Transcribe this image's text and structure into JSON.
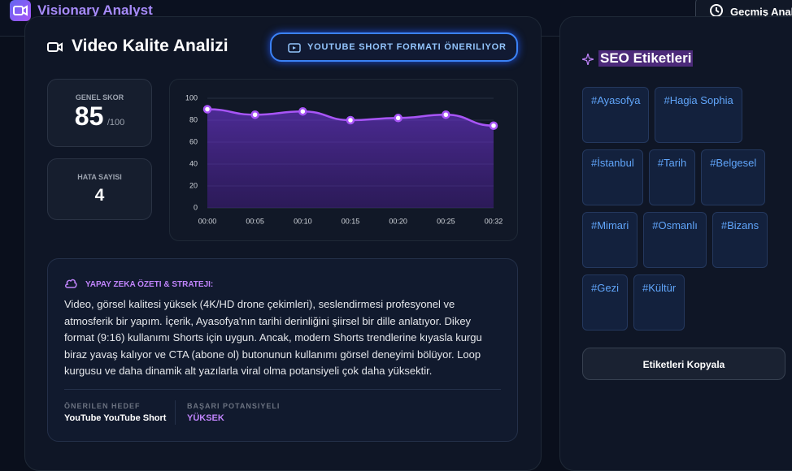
{
  "header": {
    "app_name": "Visionary Analyst",
    "history_button": "Geçmiş Anali"
  },
  "main": {
    "title": "Video Kalite Analizi",
    "format_badge": "YOUTUBE SHORT FORMATI ÖNERILIYOR",
    "score": {
      "label": "GENEL SKOR",
      "value": 85,
      "max_label": "/100"
    },
    "errors": {
      "label": "HATA SAYISI",
      "value": 4
    },
    "summary": {
      "heading": "YAPAY ZEKA ÖZETI & STRATEJI:",
      "text": "Video, görsel kalitesi yüksek (4K/HD drone çekimleri), seslendirmesi profesyonel ve atmosferik bir yapım. İçerik, Ayasofya'nın tarihi derinliğini şiirsel bir dille anlatıyor. Dikey format (9:16) kullanımı Shorts için uygun. Ancak, modern Shorts trendlerine kıyasla kurgu biraz yavaş kalıyor ve CTA (abone ol) butonunun kullanımı görsel deneyimi bölüyor. Loop kurgusu ve daha dinamik alt yazılarla viral olma potansiyeli çok daha yüksektir.",
      "target": {
        "label": "ÖNERILEN HEDEF",
        "value": "YouTube YouTube Short"
      },
      "potential": {
        "label": "BAŞARI POTANSIYELI",
        "value": "YÜKSEK"
      }
    }
  },
  "chart_data": {
    "type": "line",
    "categories": [
      "00:00",
      "00:05",
      "00:10",
      "00:15",
      "00:20",
      "00:25",
      "00:32"
    ],
    "values": [
      90,
      85,
      88,
      80,
      82,
      85,
      75
    ],
    "color": "#a855f7",
    "ylim": [
      0,
      100
    ],
    "yticks": [
      0,
      20,
      40,
      60,
      80,
      100
    ],
    "grid": true
  },
  "seo": {
    "title": "SEO Etiketleri",
    "tags": [
      "#Ayasofya",
      "#Hagia Sophia",
      "#İstanbul",
      "#Tarih",
      "#Belgesel",
      "#Mimari",
      "#Osmanlı",
      "#Bizans",
      "#Gezi",
      "#Kültür"
    ],
    "copy_button": "Etiketleri Kopyala"
  }
}
